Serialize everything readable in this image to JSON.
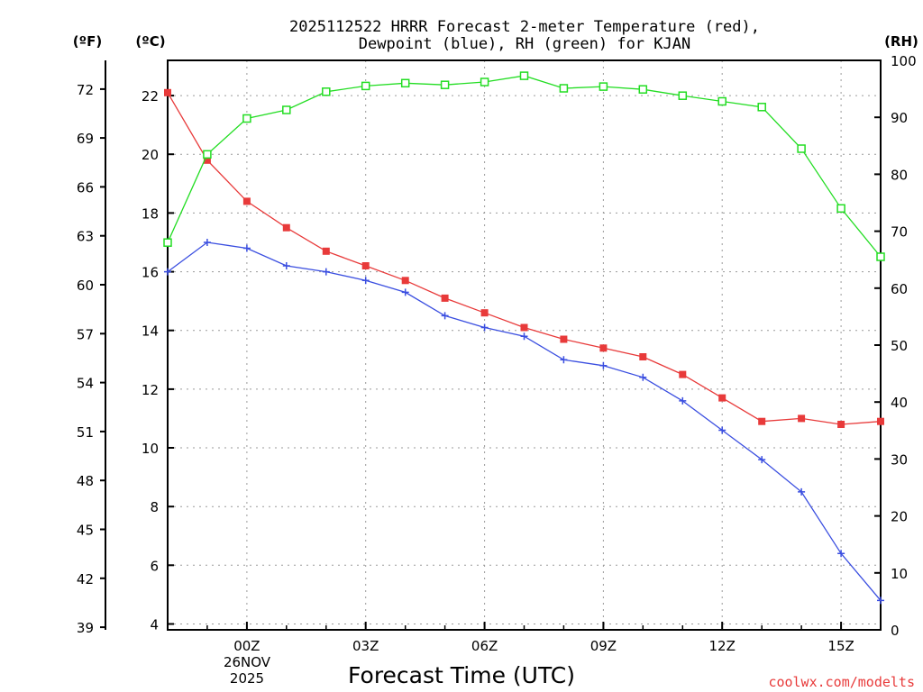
{
  "chart_data": {
    "type": "line",
    "title": [
      "2025112522 HRRR Forecast 2-meter Temperature (red),",
      "Dewpoint (blue), RH (green) for KJAN"
    ],
    "xlabel": "Forecast Time (UTC)",
    "date_label": [
      "26NOV",
      "2025"
    ],
    "credit": "coolwx.com/modelts",
    "axis_units": {
      "fahrenheit": "(ºF)",
      "celsius": "(ºC)",
      "rh": "(RH)"
    },
    "x_hours": [
      -1,
      0,
      1,
      2,
      3,
      4,
      5,
      6,
      7,
      8,
      9,
      10,
      11,
      12,
      13,
      14,
      15,
      16,
      17
    ],
    "x_range": [
      -1,
      17
    ],
    "x_ticks": [
      {
        "hour": 1,
        "label": "00Z"
      },
      {
        "hour": 4,
        "label": "03Z"
      },
      {
        "hour": 7,
        "label": "06Z"
      },
      {
        "hour": 10,
        "label": "09Z"
      },
      {
        "hour": 13,
        "label": "12Z"
      },
      {
        "hour": 16,
        "label": "15Z"
      }
    ],
    "celsius_range": [
      3.8,
      23.2
    ],
    "celsius_ticks": [
      4,
      6,
      8,
      10,
      12,
      14,
      16,
      18,
      20,
      22
    ],
    "fahrenheit_ticks": [
      39,
      42,
      45,
      48,
      51,
      54,
      57,
      60,
      63,
      66,
      69,
      72
    ],
    "rh_range": [
      0,
      100
    ],
    "rh_ticks": [
      0,
      10,
      20,
      30,
      40,
      50,
      60,
      70,
      80,
      90,
      100
    ],
    "series": [
      {
        "name": "Temperature",
        "axis": "celsius",
        "color": "#e83a3a",
        "marker": "filled-square",
        "values": [
          22.1,
          19.8,
          18.4,
          17.5,
          16.7,
          16.2,
          15.7,
          15.1,
          14.6,
          14.1,
          13.7,
          13.4,
          13.1,
          12.5,
          11.7,
          10.9,
          11.0,
          10.8,
          10.9
        ]
      },
      {
        "name": "Dewpoint",
        "axis": "celsius",
        "color": "#3a4ee0",
        "marker": "plus",
        "values": [
          16.0,
          17.0,
          16.8,
          16.2,
          16.0,
          15.7,
          15.3,
          14.5,
          14.1,
          13.8,
          13.0,
          12.8,
          12.4,
          11.6,
          10.6,
          9.6,
          8.5,
          6.4,
          4.8
        ]
      },
      {
        "name": "RH",
        "axis": "rh",
        "color": "#22dd22",
        "marker": "open-square",
        "values": [
          68,
          83.5,
          89.8,
          91.3,
          94.5,
          95.5,
          96,
          95.7,
          96.2,
          97.3,
          95.1,
          95.4,
          94.9,
          93.8,
          92.8,
          91.8,
          84.5,
          74,
          65.5
        ]
      }
    ]
  }
}
